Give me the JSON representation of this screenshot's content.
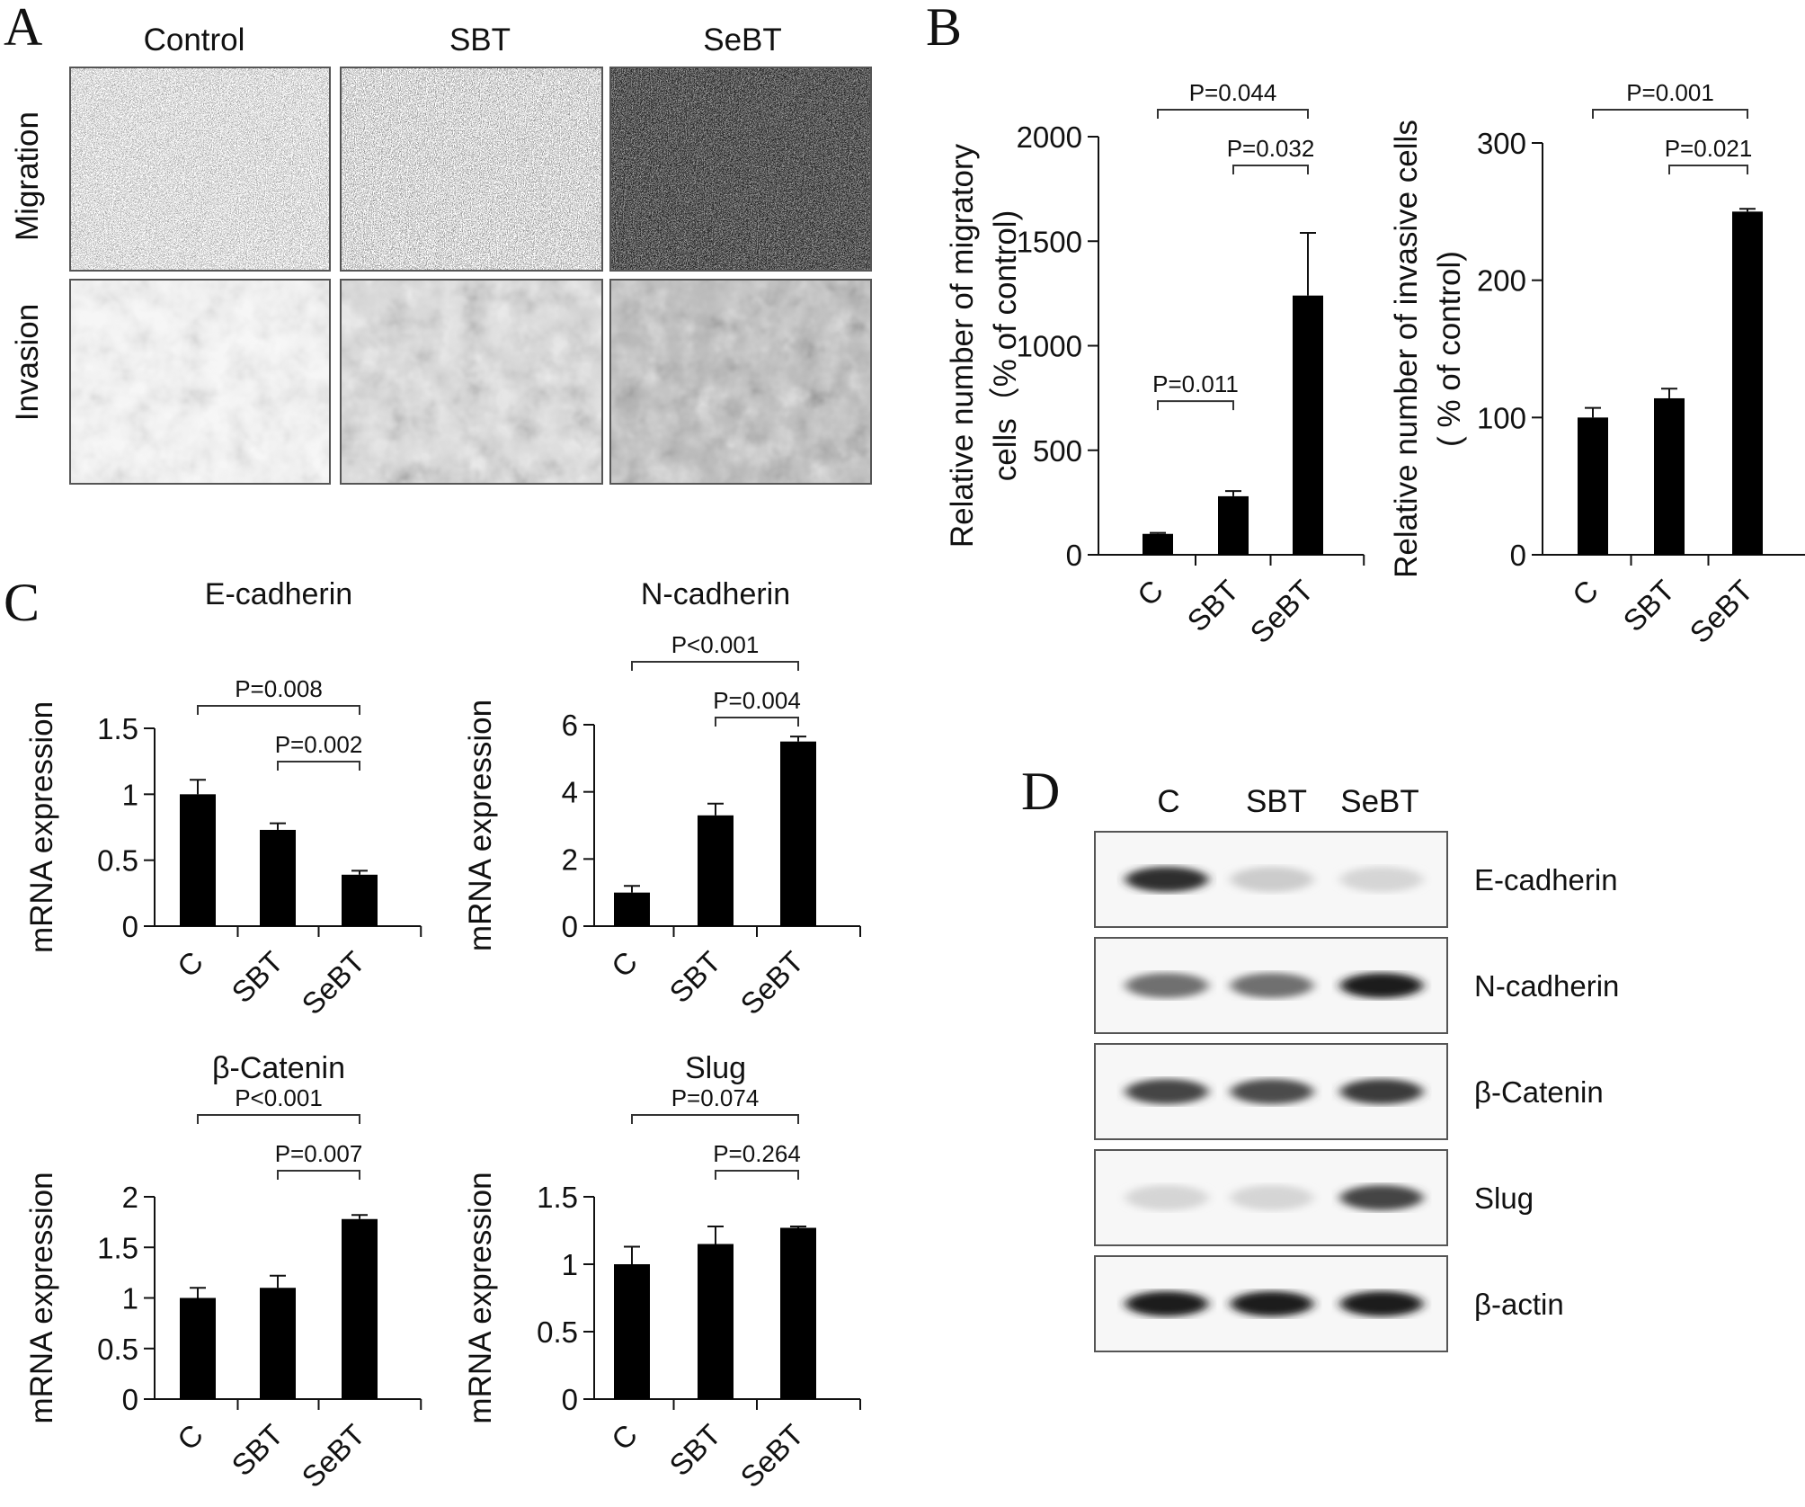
{
  "panels": {
    "A": {
      "letter": "A",
      "columns": [
        "Control",
        "SBT",
        "SeBT"
      ],
      "rows": [
        "Migration",
        "Invasion"
      ]
    },
    "B": {
      "letter": "B"
    },
    "C": {
      "letter": "C"
    },
    "D": {
      "letter": "D",
      "lanes": [
        "C",
        "SBT",
        "SeBT"
      ],
      "blots": [
        {
          "label": "E-cadherin",
          "intensity": [
            0.85,
            0.12,
            0.08
          ]
        },
        {
          "label": "N-cadherin",
          "intensity": [
            0.55,
            0.55,
            0.95
          ]
        },
        {
          "label": "β-Catenin",
          "intensity": [
            0.75,
            0.72,
            0.8
          ]
        },
        {
          "label": "Slug",
          "intensity": [
            0.08,
            0.08,
            0.75
          ]
        },
        {
          "label": "β-actin",
          "intensity": [
            0.95,
            0.95,
            0.95
          ]
        }
      ]
    }
  },
  "chart_data": [
    {
      "type": "bar",
      "panel": "B",
      "title": "",
      "categories": [
        "C",
        "SBT",
        "SeBT"
      ],
      "values": [
        100,
        280,
        1240
      ],
      "errors": [
        5,
        25,
        300
      ],
      "ylabel_lines": [
        "Relative number of migratory",
        "cells（% of control)"
      ],
      "ylim": [
        0,
        2000
      ],
      "yticks": [
        0,
        500,
        1000,
        1500,
        2000
      ],
      "ytick_labels": [
        "0",
        "500",
        "1000",
        "1500",
        "2000"
      ],
      "comparisons": [
        {
          "from": 0,
          "to": 2,
          "label": "P=0.044"
        },
        {
          "from": 1,
          "to": 2,
          "label": "P=0.032"
        },
        {
          "from": 0,
          "to": 1,
          "label": "P=0.011"
        }
      ]
    },
    {
      "type": "bar",
      "panel": "B",
      "title": "",
      "categories": [
        "C",
        "SBT",
        "SeBT"
      ],
      "values": [
        100,
        114,
        250
      ],
      "errors": [
        7,
        7,
        2
      ],
      "ylabel_lines": [
        "Relative number of invasive cells",
        "( % of control)"
      ],
      "ylim": [
        0,
        300
      ],
      "yticks": [
        0,
        100,
        200,
        300
      ],
      "ytick_labels": [
        "0",
        "100",
        "200",
        "300"
      ],
      "comparisons": [
        {
          "from": 0,
          "to": 2,
          "label": "P=0.001"
        },
        {
          "from": 1,
          "to": 2,
          "label": "P=0.021"
        }
      ]
    },
    {
      "type": "bar",
      "panel": "C",
      "title": "E-cadherin",
      "categories": [
        "C",
        "SBT",
        "SeBT"
      ],
      "values": [
        1.0,
        0.73,
        0.39
      ],
      "errors": [
        0.11,
        0.05,
        0.03
      ],
      "ylabel_lines": [
        "mRNA expression"
      ],
      "ylim": [
        0,
        1.5
      ],
      "yticks": [
        0,
        0.5,
        1,
        1.5
      ],
      "ytick_labels": [
        "0",
        "0.5",
        "1",
        "1.5"
      ],
      "comparisons": [
        {
          "from": 0,
          "to": 2,
          "label": "P=0.008"
        },
        {
          "from": 1,
          "to": 2,
          "label": "P=0.002"
        }
      ]
    },
    {
      "type": "bar",
      "panel": "C",
      "title": "N-cadherin",
      "categories": [
        "C",
        "SBT",
        "SeBT"
      ],
      "values": [
        1.0,
        3.3,
        5.5
      ],
      "errors": [
        0.2,
        0.35,
        0.15
      ],
      "ylabel_lines": [
        "mRNA expression"
      ],
      "ylim": [
        0,
        6
      ],
      "yticks": [
        0,
        2,
        4,
        6
      ],
      "ytick_labels": [
        "0",
        "2",
        "4",
        "6"
      ],
      "comparisons": [
        {
          "from": 0,
          "to": 2,
          "label": "P<0.001"
        },
        {
          "from": 1,
          "to": 2,
          "label": "P=0.004"
        }
      ]
    },
    {
      "type": "bar",
      "panel": "C",
      "title": "β-Catenin",
      "categories": [
        "C",
        "SBT",
        "SeBT"
      ],
      "values": [
        1.0,
        1.1,
        1.78
      ],
      "errors": [
        0.1,
        0.12,
        0.04
      ],
      "ylabel_lines": [
        "mRNA expression"
      ],
      "ylim": [
        0,
        2
      ],
      "yticks": [
        0,
        0.5,
        1,
        1.5,
        2
      ],
      "ytick_labels": [
        "0",
        "0.5",
        "1",
        "1.5",
        "2"
      ],
      "comparisons": [
        {
          "from": 0,
          "to": 2,
          "label": "P<0.001"
        },
        {
          "from": 1,
          "to": 2,
          "label": "P=0.007"
        }
      ]
    },
    {
      "type": "bar",
      "panel": "C",
      "title": "Slug",
      "categories": [
        "C",
        "SBT",
        "SeBT"
      ],
      "values": [
        1.0,
        1.15,
        1.27
      ],
      "errors": [
        0.13,
        0.13,
        0.01
      ],
      "ylabel_lines": [
        "mRNA expression"
      ],
      "ylim": [
        0,
        1.5
      ],
      "yticks": [
        0,
        0.5,
        1,
        1.5
      ],
      "ytick_labels": [
        "0",
        "0.5",
        "1",
        "1.5"
      ],
      "comparisons": [
        {
          "from": 0,
          "to": 2,
          "label": "P=0.074"
        },
        {
          "from": 1,
          "to": 2,
          "label": "P=0.264"
        }
      ]
    }
  ]
}
